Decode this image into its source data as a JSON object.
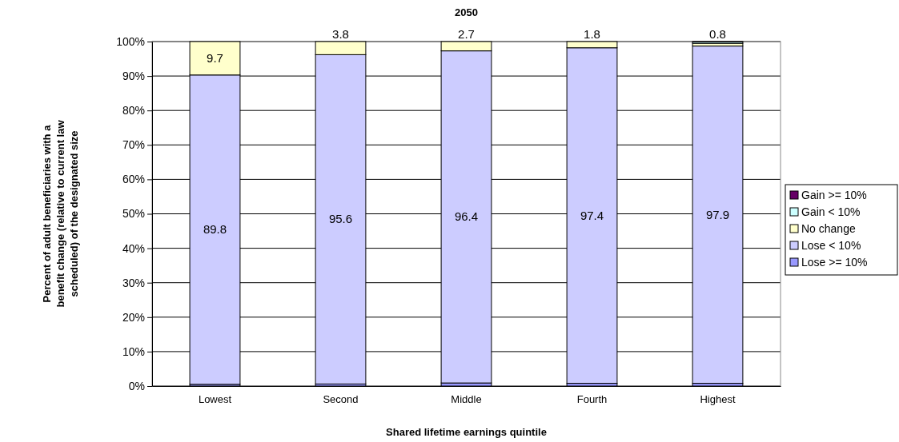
{
  "chart_data": {
    "type": "bar",
    "stacked": true,
    "title": "2050",
    "xlabel": "Shared lifetime earnings quintile",
    "ylabel": "Percent of adult beneficiaries with a benefit change (relative to current law scheduled) of the designated size",
    "categories": [
      "Lowest",
      "Second",
      "Middle",
      "Fourth",
      "Highest"
    ],
    "series": [
      {
        "name": "Lose >= 10%",
        "color": "#9999ff",
        "values": [
          0.5,
          0.6,
          0.9,
          0.8,
          0.8
        ],
        "value_labels": [
          null,
          null,
          null,
          null,
          null
        ]
      },
      {
        "name": "Lose < 10%",
        "color": "#ccccff",
        "values": [
          89.8,
          95.6,
          96.4,
          97.4,
          97.9
        ],
        "value_labels": [
          "89.8",
          "95.6",
          "96.4",
          "97.4",
          "97.9"
        ]
      },
      {
        "name": "No change",
        "color": "#ffffcc",
        "values": [
          9.7,
          3.8,
          2.7,
          1.8,
          0.8
        ],
        "value_labels": [
          "9.7",
          "3.8",
          "2.7",
          "1.8",
          "0.8"
        ]
      },
      {
        "name": "Gain < 10%",
        "color": "#ccffff",
        "values": [
          0,
          0,
          0,
          0,
          0.4
        ],
        "value_labels": [
          null,
          null,
          null,
          null,
          null
        ]
      },
      {
        "name": "Gain >= 10%",
        "color": "#660066",
        "values": [
          0,
          0,
          0,
          0,
          0.1
        ],
        "value_labels": [
          null,
          null,
          null,
          null,
          null
        ]
      }
    ],
    "ylim": [
      0,
      100
    ],
    "yticks": [
      {
        "value": 0,
        "label": "0%"
      },
      {
        "value": 10,
        "label": "10%"
      },
      {
        "value": 20,
        "label": "20%"
      },
      {
        "value": 30,
        "label": "30%"
      },
      {
        "value": 40,
        "label": "40%"
      },
      {
        "value": 50,
        "label": "50%"
      },
      {
        "value": 60,
        "label": "60%"
      },
      {
        "value": 70,
        "label": "70%"
      },
      {
        "value": 80,
        "label": "80%"
      },
      {
        "value": 90,
        "label": "90%"
      },
      {
        "value": 100,
        "label": "100%"
      }
    ],
    "grid": "y",
    "legend": "right"
  }
}
